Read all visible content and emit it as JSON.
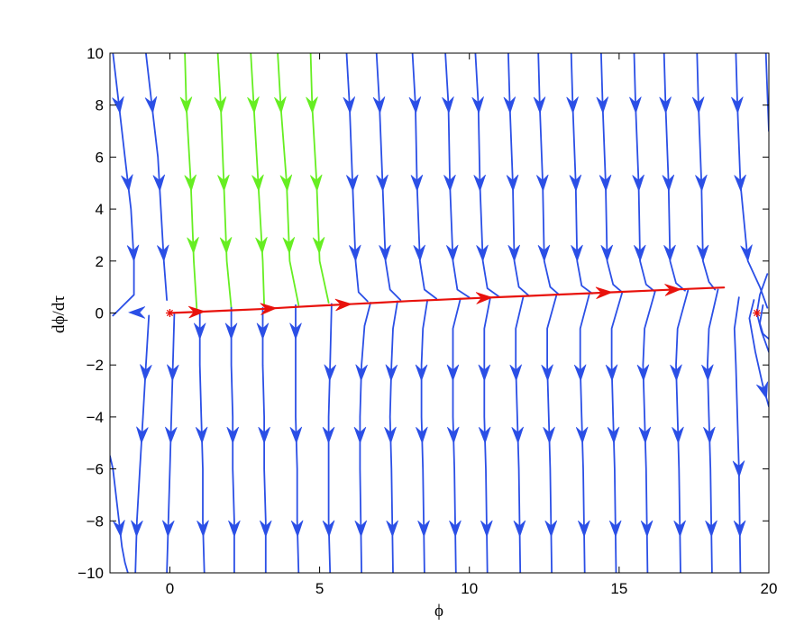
{
  "chart_data": {
    "type": "line",
    "title": "",
    "xlabel": "ϕ",
    "ylabel": "dϕ/dτ",
    "xlim": [
      -2,
      20
    ],
    "ylim": [
      -10,
      10
    ],
    "xticks": [
      0,
      5,
      10,
      15,
      20
    ],
    "yticks": [
      -10,
      -8,
      -6,
      -4,
      -2,
      0,
      2,
      4,
      6,
      8,
      10
    ],
    "xtick_labels": [
      "0",
      "5",
      "10",
      "15",
      "20"
    ],
    "ytick_labels": [
      "−10",
      "−8",
      "−6",
      "−4",
      "−2",
      "0",
      "2",
      "4",
      "6",
      "8",
      "10"
    ],
    "grid": false,
    "fixed_points": [
      {
        "x": 0,
        "y": 0
      },
      {
        "x": 19.6,
        "y": 0
      }
    ],
    "colors": {
      "trajectories": "#2b4fe6",
      "separatrix_bundle": "#66ee22",
      "heteroclinic_orbit": "#e8120c",
      "fixed_point": "#e8120c"
    },
    "series": [
      {
        "role": "upper-trajectory",
        "color": "trajectories",
        "x": [
          -1.9,
          -1.7,
          -1.5,
          -1.3,
          -1.2,
          -1.2,
          -1.9
        ],
        "y": [
          10,
          8,
          6,
          4,
          2,
          0.7,
          -0.1
        ],
        "arrows_y": [
          8,
          5,
          2.3
        ]
      },
      {
        "role": "upper-trajectory",
        "color": "trajectories",
        "x": [
          -0.8,
          -0.6,
          -0.4,
          -0.3,
          -0.2,
          -0.1
        ],
        "y": [
          10,
          8,
          6,
          4,
          2,
          0.5
        ],
        "arrows_y": [
          8,
          5,
          2.3
        ]
      },
      {
        "role": "upper-trajectory",
        "color": "separatrix_bundle",
        "x": [
          0.5,
          0.55,
          0.7,
          0.8,
          0.9
        ],
        "y": [
          10,
          8,
          5,
          2,
          0.1
        ],
        "arrows_y": [
          8,
          5,
          2.6
        ]
      },
      {
        "role": "upper-trajectory",
        "color": "separatrix_bundle",
        "x": [
          1.6,
          1.7,
          1.8,
          1.9,
          2.05
        ],
        "y": [
          10,
          8,
          5,
          2,
          0.2
        ],
        "arrows_y": [
          8,
          5,
          2.6
        ]
      },
      {
        "role": "upper-trajectory",
        "color": "separatrix_bundle",
        "x": [
          2.7,
          2.8,
          2.95,
          3.1,
          3.15
        ],
        "y": [
          10,
          8,
          5,
          2,
          0.3
        ],
        "arrows_y": [
          8,
          5,
          2.6
        ]
      },
      {
        "role": "upper-trajectory",
        "color": "separatrix_bundle",
        "x": [
          3.6,
          3.7,
          3.9,
          4.0,
          4.3
        ],
        "y": [
          10,
          8,
          5,
          2,
          0.3
        ],
        "arrows_y": [
          8,
          5,
          2.6
        ]
      },
      {
        "role": "upper-trajectory",
        "color": "separatrix_bundle",
        "x": [
          4.7,
          4.75,
          4.9,
          5.0,
          5.3
        ],
        "y": [
          10,
          8,
          5,
          2,
          0.4
        ],
        "arrows_y": [
          8,
          5,
          2.6
        ]
      },
      {
        "role": "upper-trajectory",
        "color": "trajectories",
        "x": [
          5.9,
          6.0,
          6.1,
          6.2,
          6.3,
          6.6
        ],
        "y": [
          10,
          8,
          5,
          2,
          0.8,
          0.45
        ],
        "arrows_y": [
          8,
          5,
          2.3
        ]
      },
      {
        "role": "upper-trajectory",
        "color": "trajectories",
        "x": [
          6.9,
          7.0,
          7.1,
          7.2,
          7.35,
          7.7
        ],
        "y": [
          10,
          8,
          5,
          2,
          0.9,
          0.5
        ],
        "arrows_y": [
          8,
          5,
          2.3
        ]
      },
      {
        "role": "upper-trajectory",
        "color": "trajectories",
        "x": [
          8.1,
          8.2,
          8.25,
          8.35,
          8.5,
          8.9
        ],
        "y": [
          10,
          8,
          5,
          2,
          0.9,
          0.55
        ],
        "arrows_y": [
          8,
          5,
          2.3
        ]
      },
      {
        "role": "upper-trajectory",
        "color": "trajectories",
        "x": [
          9.2,
          9.3,
          9.35,
          9.45,
          9.6,
          10.0
        ],
        "y": [
          10,
          8,
          5,
          2,
          0.9,
          0.6
        ],
        "arrows_y": [
          8,
          5,
          2.3
        ]
      },
      {
        "role": "upper-trajectory",
        "color": "trajectories",
        "x": [
          10.2,
          10.3,
          10.35,
          10.45,
          10.6,
          11.0
        ],
        "y": [
          10,
          8,
          5,
          2,
          0.95,
          0.62
        ],
        "arrows_y": [
          8,
          5,
          2.3
        ]
      },
      {
        "role": "upper-trajectory",
        "color": "trajectories",
        "x": [
          11.3,
          11.35,
          11.45,
          11.5,
          11.65,
          12.0
        ],
        "y": [
          10,
          8,
          5,
          2,
          1.0,
          0.65
        ],
        "arrows_y": [
          8,
          5,
          2.3
        ]
      },
      {
        "role": "upper-trajectory",
        "color": "trajectories",
        "x": [
          12.3,
          12.35,
          12.45,
          12.5,
          12.7,
          13.0
        ],
        "y": [
          10,
          8,
          5,
          2,
          1.0,
          0.7
        ],
        "arrows_y": [
          8,
          5,
          2.3
        ]
      },
      {
        "role": "upper-trajectory",
        "color": "trajectories",
        "x": [
          13.4,
          13.45,
          13.55,
          13.6,
          13.75,
          14.1
        ],
        "y": [
          10,
          8,
          5,
          2,
          1.05,
          0.75
        ],
        "arrows_y": [
          8,
          5,
          2.3
        ]
      },
      {
        "role": "upper-trajectory",
        "color": "trajectories",
        "x": [
          14.4,
          14.45,
          14.55,
          14.6,
          14.8,
          15.1
        ],
        "y": [
          10,
          8,
          5,
          2,
          1.1,
          0.8
        ],
        "arrows_y": [
          8,
          5,
          2.3
        ]
      },
      {
        "role": "upper-trajectory",
        "color": "trajectories",
        "x": [
          15.5,
          15.55,
          15.65,
          15.7,
          15.9,
          16.2
        ],
        "y": [
          10,
          8,
          5,
          2,
          1.1,
          0.82
        ],
        "arrows_y": [
          8,
          5,
          2.3
        ]
      },
      {
        "role": "upper-trajectory",
        "color": "trajectories",
        "x": [
          16.5,
          16.55,
          16.65,
          16.7,
          16.9,
          17.2
        ],
        "y": [
          10,
          8,
          5,
          2,
          1.15,
          0.86
        ],
        "arrows_y": [
          8,
          5,
          2.3
        ]
      },
      {
        "role": "upper-trajectory",
        "color": "trajectories",
        "x": [
          17.6,
          17.65,
          17.75,
          17.8,
          18.0,
          18.2
        ],
        "y": [
          10,
          8,
          5,
          2,
          1.2,
          0.9
        ],
        "arrows_y": [
          8,
          5,
          2.3
        ]
      },
      {
        "role": "upper-trajectory",
        "color": "trajectories",
        "x": [
          18.9,
          18.95,
          19.05,
          19.3,
          19.7,
          19.95
        ],
        "y": [
          10,
          8,
          5,
          2,
          1.0,
          0.2
        ],
        "arrows_y": [
          8,
          5,
          2.3
        ]
      },
      {
        "role": "upper-trajectory",
        "color": "trajectories",
        "x": [
          19.9,
          19.95,
          20.0
        ],
        "y": [
          10,
          8.5,
          7
        ],
        "arrows_y": []
      },
      {
        "role": "lower-trajectory",
        "color": "trajectories",
        "x": [
          -2.0,
          -1.9,
          -1.7,
          -1.6,
          -1.5,
          -1.4,
          -1.4
        ],
        "y": [
          -5.5,
          -6,
          -8,
          -9,
          -9.6,
          -10,
          -10
        ],
        "arrows_y": [
          -8.3
        ]
      },
      {
        "role": "lower-trajectory",
        "color": "trajectories",
        "x": [
          -0.7,
          -0.8,
          -0.9,
          -1.0,
          -1.1,
          -1.15
        ],
        "y": [
          -0.1,
          -2,
          -4,
          -6,
          -8,
          -10
        ],
        "arrows_y": [
          -8.3,
          -4.7,
          -2.3
        ]
      },
      {
        "role": "lower-trajectory",
        "color": "trajectories",
        "x": [
          0.15,
          0.1,
          0.05,
          0.0,
          -0.05,
          -0.1
        ],
        "y": [
          -0.05,
          -2,
          -4,
          -6,
          -8,
          -10
        ],
        "arrows_y": [
          -8.3,
          -4.7,
          -2.3
        ]
      },
      {
        "role": "lower-trajectory",
        "color": "trajectories",
        "x": [
          1.0,
          1.0,
          1.05,
          1.1,
          1.1,
          1.15
        ],
        "y": [
          0.05,
          -2,
          -4,
          -6,
          -8,
          -10
        ],
        "arrows_y": [
          -8.3,
          -4.7,
          -0.7
        ]
      },
      {
        "role": "lower-trajectory",
        "color": "trajectories",
        "x": [
          2.05,
          2.05,
          2.1,
          2.1,
          2.15,
          2.15
        ],
        "y": [
          0.2,
          -2,
          -4,
          -6,
          -8,
          -10
        ],
        "arrows_y": [
          -8.3,
          -4.7,
          -0.7
        ]
      },
      {
        "role": "lower-trajectory",
        "color": "trajectories",
        "x": [
          3.1,
          3.1,
          3.15,
          3.15,
          3.2,
          3.2
        ],
        "y": [
          0.2,
          -2,
          -4,
          -6,
          -8,
          -10
        ],
        "arrows_y": [
          -8.3,
          -4.7,
          -0.7
        ]
      },
      {
        "role": "lower-trajectory",
        "color": "trajectories",
        "x": [
          4.2,
          4.2,
          4.2,
          4.25,
          4.25,
          4.3
        ],
        "y": [
          0.3,
          -2,
          -4,
          -6,
          -8,
          -10
        ],
        "arrows_y": [
          -8.3,
          -4.7,
          -0.7
        ]
      },
      {
        "role": "lower-trajectory",
        "color": "trajectories",
        "x": [
          5.4,
          5.35,
          5.3,
          5.3,
          5.3,
          5.35
        ],
        "y": [
          0.35,
          -2,
          -4,
          -6,
          -8,
          -10
        ],
        "arrows_y": [
          -8.3,
          -4.7,
          -2.3
        ]
      },
      {
        "role": "lower-trajectory",
        "color": "trajectories",
        "x": [
          6.7,
          6.5,
          6.4,
          6.35,
          6.35,
          6.4
        ],
        "y": [
          0.4,
          -0.5,
          -2,
          -4,
          -6,
          -10
        ],
        "arrows_y": [
          -8.3,
          -4.7,
          -2.3
        ]
      },
      {
        "role": "lower-trajectory",
        "color": "trajectories",
        "x": [
          7.6,
          7.45,
          7.4,
          7.35,
          7.4,
          7.45
        ],
        "y": [
          0.45,
          -0.6,
          -2,
          -4,
          -6,
          -10
        ],
        "arrows_y": [
          -8.3,
          -4.7,
          -2.3
        ]
      },
      {
        "role": "lower-trajectory",
        "color": "trajectories",
        "x": [
          8.6,
          8.45,
          8.4,
          8.4,
          8.45,
          8.5
        ],
        "y": [
          0.5,
          -0.6,
          -2,
          -4,
          -6,
          -10
        ],
        "arrows_y": [
          -8.3,
          -4.7,
          -2.3
        ]
      },
      {
        "role": "lower-trajectory",
        "color": "trajectories",
        "x": [
          9.7,
          9.45,
          9.45,
          9.45,
          9.5,
          9.55
        ],
        "y": [
          0.55,
          -0.6,
          -2,
          -4,
          -6,
          -10
        ],
        "arrows_y": [
          -8.3,
          -4.7,
          -2.3
        ]
      },
      {
        "role": "lower-trajectory",
        "color": "trajectories",
        "x": [
          10.7,
          10.5,
          10.5,
          10.5,
          10.55,
          10.6
        ],
        "y": [
          0.6,
          -0.6,
          -2,
          -4,
          -6,
          -10
        ],
        "arrows_y": [
          -8.3,
          -4.7,
          -2.3
        ]
      },
      {
        "role": "lower-trajectory",
        "color": "trajectories",
        "x": [
          11.8,
          11.55,
          11.55,
          11.6,
          11.65,
          11.7
        ],
        "y": [
          0.62,
          -0.6,
          -2,
          -4,
          -6,
          -10
        ],
        "arrows_y": [
          -8.3,
          -4.7,
          -2.3
        ]
      },
      {
        "role": "lower-trajectory",
        "color": "trajectories",
        "x": [
          12.9,
          12.6,
          12.6,
          12.65,
          12.7,
          12.75
        ],
        "y": [
          0.65,
          -0.6,
          -2,
          -4,
          -6,
          -10
        ],
        "arrows_y": [
          -8.3,
          -4.7,
          -2.3
        ]
      },
      {
        "role": "lower-trajectory",
        "color": "trajectories",
        "x": [
          14.0,
          13.7,
          13.7,
          13.75,
          13.8,
          13.85
        ],
        "y": [
          0.7,
          -0.6,
          -2,
          -4,
          -6,
          -10
        ],
        "arrows_y": [
          -8.3,
          -4.7,
          -2.3
        ]
      },
      {
        "role": "lower-trajectory",
        "color": "trajectories",
        "x": [
          15.1,
          14.75,
          14.75,
          14.8,
          14.85,
          14.9
        ],
        "y": [
          0.78,
          -0.6,
          -2,
          -4,
          -6,
          -10
        ],
        "arrows_y": [
          -8.3,
          -4.7,
          -2.3
        ]
      },
      {
        "role": "lower-trajectory",
        "color": "trajectories",
        "x": [
          16.2,
          15.85,
          15.8,
          15.85,
          15.9,
          15.95
        ],
        "y": [
          0.82,
          -0.6,
          -2,
          -4,
          -6,
          -10
        ],
        "arrows_y": [
          -8.3,
          -4.7,
          -2.3
        ]
      },
      {
        "role": "lower-trajectory",
        "color": "trajectories",
        "x": [
          17.3,
          16.95,
          16.9,
          16.95,
          17.0,
          17.05
        ],
        "y": [
          0.87,
          -0.6,
          -2,
          -4,
          -6,
          -10
        ],
        "arrows_y": [
          -8.3,
          -4.7,
          -2.3
        ]
      },
      {
        "role": "lower-trajectory",
        "color": "trajectories",
        "x": [
          18.3,
          18.0,
          17.95,
          18.0,
          18.05,
          18.1
        ],
        "y": [
          0.9,
          -0.6,
          -2,
          -4,
          -6,
          -10
        ],
        "arrows_y": [
          -8.3,
          -4.7,
          -2.3
        ]
      },
      {
        "role": "lower-trajectory",
        "color": "trajectories",
        "x": [
          19.0,
          18.85,
          18.9,
          18.95,
          19.0,
          19.05
        ],
        "y": [
          0.6,
          -0.6,
          -2,
          -4,
          -6,
          -10
        ],
        "arrows_y": [
          -8.3,
          -6.0
        ]
      },
      {
        "role": "lower-trajectory",
        "color": "trajectories",
        "x": [
          19.5,
          19.35,
          19.55,
          19.8,
          20.0
        ],
        "y": [
          0.5,
          -0.2,
          -1.5,
          -2.8,
          -3.6
        ],
        "arrows_y": [
          -3.0
        ]
      },
      {
        "role": "lower-trajectory",
        "color": "trajectories",
        "x": [
          19.8,
          19.7,
          19.8,
          20.0
        ],
        "y": [
          0.3,
          -0.4,
          -0.8,
          -1.0
        ],
        "arrows_y": []
      },
      {
        "role": "near-saddle",
        "color": "trajectories",
        "x": [
          19.95,
          19.7,
          19.6,
          19.75,
          20.0
        ],
        "y": [
          1.5,
          0.7,
          0.0,
          -0.7,
          -1.5
        ],
        "arrows_y": []
      },
      {
        "role": "heteroclinic-orbit",
        "color": "heteroclinic_orbit",
        "x": [
          0.0,
          1.0,
          2.0,
          3.0,
          4.0,
          5.0,
          6.0,
          7.0,
          8.0,
          9.0,
          10.0,
          11.0,
          12.0,
          13.0,
          14.0,
          15.0,
          16.0,
          17.0,
          18.0,
          18.5
        ],
        "y": [
          0.0,
          0.05,
          0.1,
          0.15,
          0.22,
          0.28,
          0.34,
          0.4,
          0.46,
          0.51,
          0.56,
          0.61,
          0.66,
          0.71,
          0.76,
          0.81,
          0.86,
          0.91,
          0.96,
          0.98
        ],
        "arrow_x": [
          0.9,
          3.3,
          5.8,
          10.5,
          14.5,
          16.8
        ]
      }
    ],
    "axis_left_arrow": {
      "x": -1.1,
      "y": 0.02
    }
  }
}
